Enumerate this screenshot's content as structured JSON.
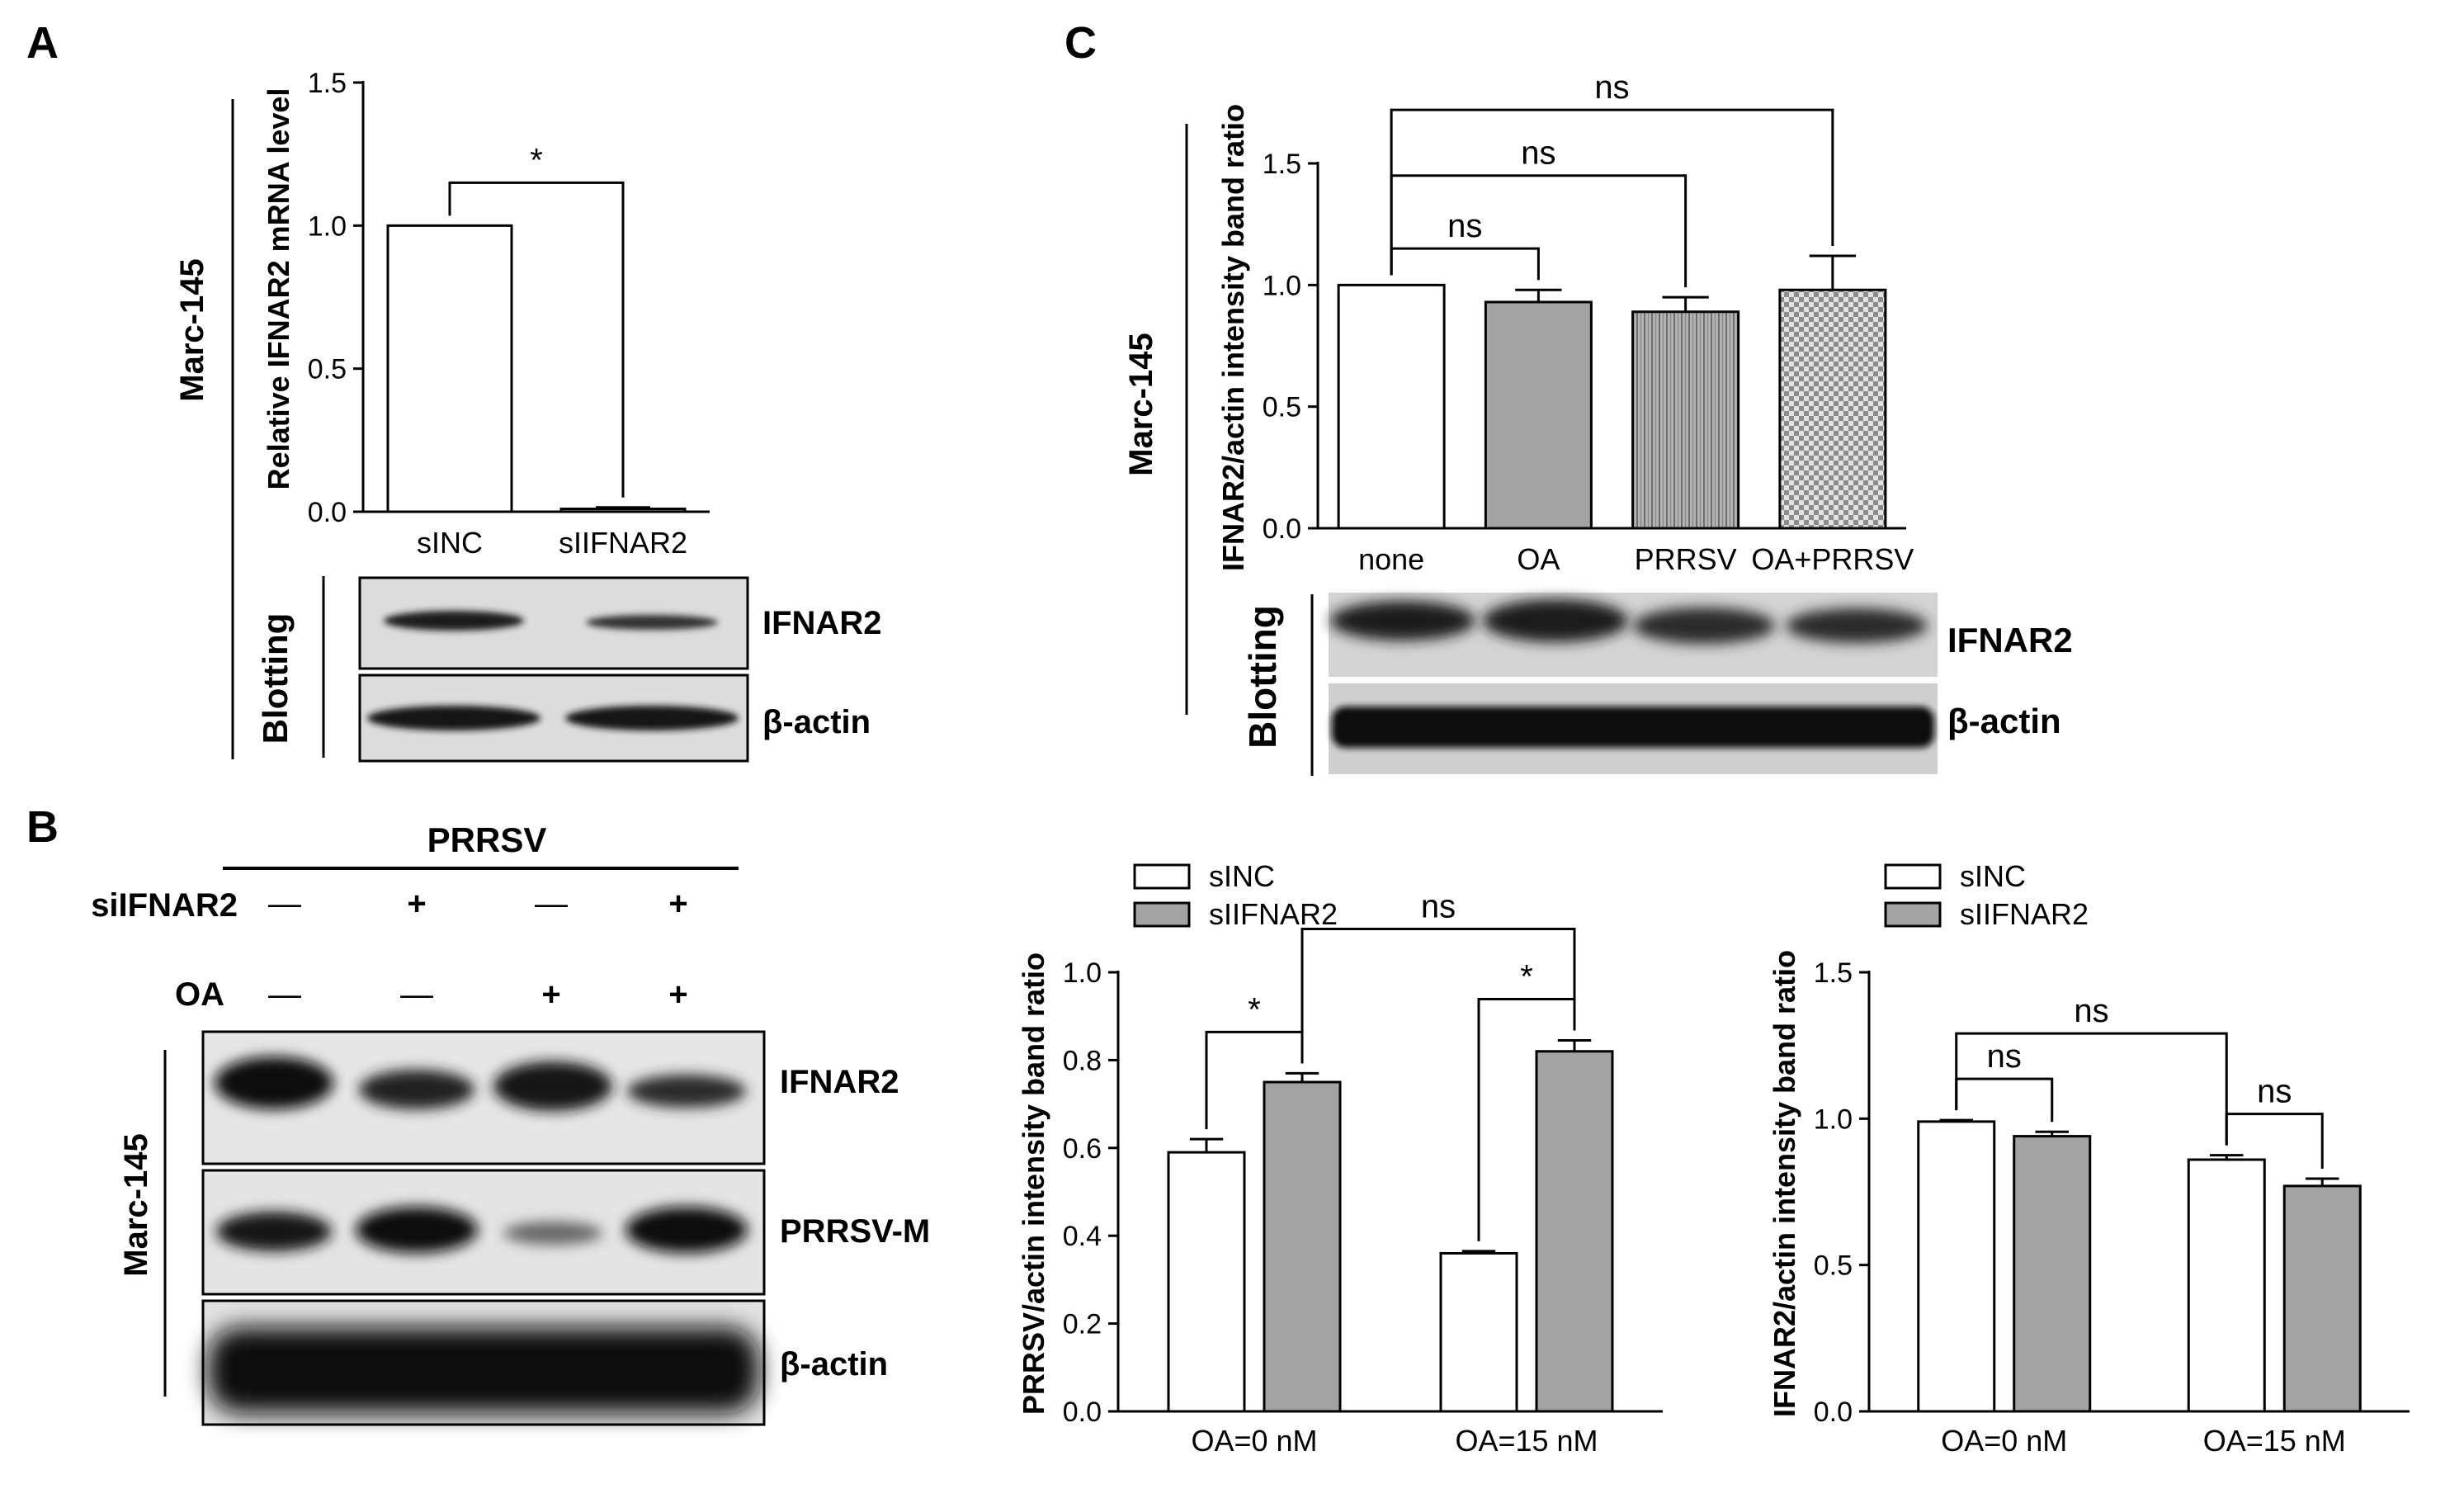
{
  "panel_letters": {
    "a": "A",
    "b": "B",
    "c": "C"
  },
  "cell_line": "Marc-145",
  "blotting_label": "Blotting",
  "panel_a": {
    "blot_labels": [
      "IFNAR2",
      "β-actin"
    ]
  },
  "panel_b": {
    "header": "PRRSV",
    "row_labels": [
      "siIFNAR2",
      "OA"
    ],
    "row_signs": [
      [
        "—",
        "+",
        "—",
        "+"
      ],
      [
        "—",
        "—",
        "+",
        "+"
      ]
    ],
    "blot_labels": [
      "IFNAR2",
      "PRRSV-M",
      "β-actin"
    ]
  },
  "panel_c": {
    "blot_labels": [
      "IFNAR2",
      "β-actin"
    ]
  },
  "colors": {
    "white_bar": "#ffffff",
    "gray_bar": "#a3a3a3",
    "axis": "#000000"
  },
  "chart_data": [
    {
      "id": "A",
      "type": "bar",
      "ylabel": "Relative IFNAR2 mRNA level",
      "ylim": [
        0,
        1.5
      ],
      "yticks": [
        "0.0",
        "0.5",
        "1.0",
        "1.5"
      ],
      "categories": [
        "sINC",
        "sIIFNAR2"
      ],
      "values": [
        1.0,
        0.01
      ],
      "errors": [
        0,
        0.005
      ],
      "fills": [
        "white",
        "gray"
      ],
      "significance": [
        {
          "between": [
            0,
            1
          ],
          "label": "*"
        }
      ]
    },
    {
      "id": "C",
      "type": "bar",
      "ylabel": "IFNAR2/actin intensity band ratio",
      "ylim": [
        0,
        1.5
      ],
      "yticks": [
        "0.0",
        "0.5",
        "1.0",
        "1.5"
      ],
      "categories": [
        "none",
        "OA",
        "PRRSV",
        "OA+PRRSV"
      ],
      "values": [
        1.0,
        0.93,
        0.89,
        0.98
      ],
      "errors": [
        0,
        0.05,
        0.06,
        0.14
      ],
      "fills": [
        "white",
        "gray",
        "stripes",
        "checker"
      ],
      "significance": [
        {
          "between": [
            0,
            1
          ],
          "label": "ns"
        },
        {
          "between": [
            0,
            2
          ],
          "label": "ns"
        },
        {
          "between": [
            0,
            3
          ],
          "label": "ns"
        }
      ]
    },
    {
      "id": "B-prrsv",
      "type": "bar",
      "ylabel": "PRRSV/actin intensity band ratio",
      "ylim": [
        0,
        1.0
      ],
      "yticks": [
        "0.0",
        "0.2",
        "0.4",
        "0.6",
        "0.8",
        "1.0"
      ],
      "categories": [
        "OA=0 nM",
        "OA=15 nM"
      ],
      "series": [
        {
          "name": "sINC",
          "values": [
            0.59,
            0.36
          ],
          "errors": [
            0.03,
            0.005
          ]
        },
        {
          "name": "sIIFNAR2",
          "values": [
            0.75,
            0.82
          ],
          "errors": [
            0.02,
            0.025
          ]
        }
      ],
      "significance": [
        {
          "label": "*",
          "between": [
            [
              0,
              0
            ],
            [
              0,
              1
            ]
          ]
        },
        {
          "label": "*",
          "between": [
            [
              1,
              0
            ],
            [
              1,
              1
            ]
          ]
        },
        {
          "label": "ns",
          "between": [
            [
              0,
              1
            ],
            [
              1,
              1
            ]
          ]
        }
      ],
      "legend": "top-left"
    },
    {
      "id": "B-ifnar2",
      "type": "bar",
      "ylabel": "IFNAR2/actin intensity band ratio",
      "ylim": [
        0,
        1.5
      ],
      "yticks": [
        "0.0",
        "0.5",
        "1.0",
        "1.5"
      ],
      "categories": [
        "OA=0 nM",
        "OA=15 nM"
      ],
      "series": [
        {
          "name": "sINC",
          "values": [
            0.99,
            0.86
          ],
          "errors": [
            0.005,
            0.015
          ]
        },
        {
          "name": "sIIFNAR2",
          "values": [
            0.94,
            0.77
          ],
          "errors": [
            0.015,
            0.025
          ]
        }
      ],
      "significance": [
        {
          "label": "ns",
          "between": [
            [
              0,
              0
            ],
            [
              0,
              1
            ]
          ]
        },
        {
          "label": "ns",
          "between": [
            [
              1,
              0
            ],
            [
              1,
              1
            ]
          ]
        },
        {
          "label": "ns",
          "between": [
            [
              0,
              0
            ],
            [
              1,
              0
            ]
          ]
        }
      ],
      "legend": "top-left"
    }
  ]
}
